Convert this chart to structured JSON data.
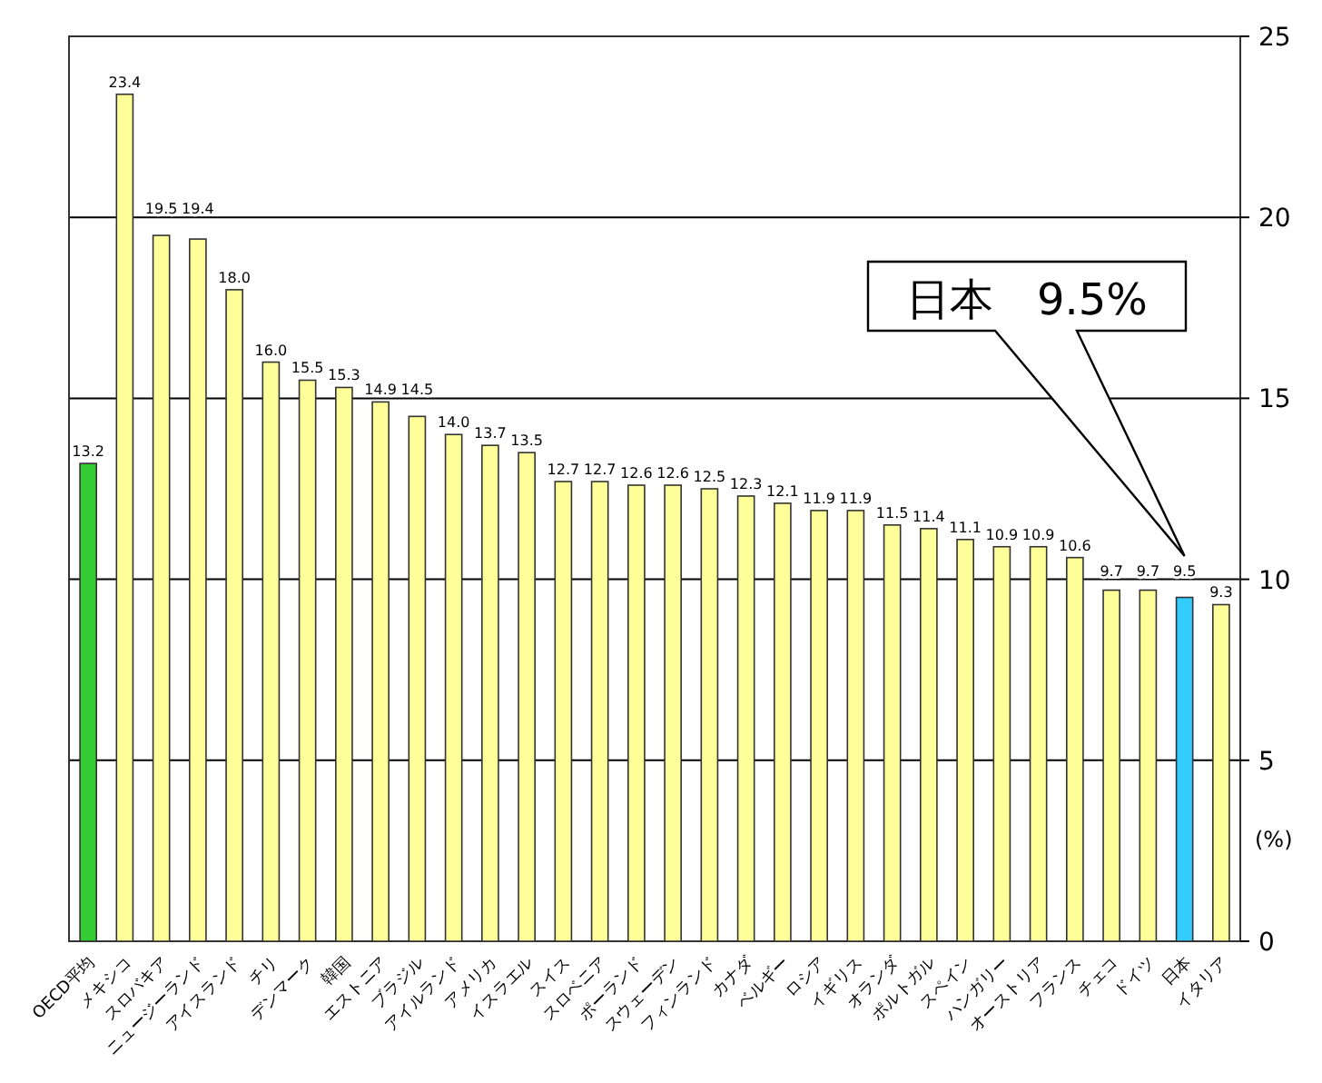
{
  "chart_data": {
    "type": "bar",
    "categories": [
      "OECD平均",
      "メキシコ",
      "スロバキア",
      "ニュージーランド",
      "アイスランド",
      "チリ",
      "デンマーク",
      "韓国",
      "エストニア",
      "ブラジル",
      "アイルランド",
      "アメリカ",
      "イスラエル",
      "スイス",
      "スロベニア",
      "ポーランド",
      "スウェーデン",
      "フィンランド",
      "カナダ",
      "ベルギー",
      "ロシア",
      "イギリス",
      "オランダ",
      "ポルトガル",
      "スペイン",
      "ハンガリー",
      "オーストリア",
      "フランス",
      "チェコ",
      "ドイツ",
      "日本",
      "イタリア"
    ],
    "values": [
      13.2,
      23.4,
      19.5,
      19.4,
      18.0,
      16.0,
      15.5,
      15.3,
      14.9,
      14.5,
      14.0,
      13.7,
      13.5,
      12.7,
      12.7,
      12.6,
      12.6,
      12.5,
      12.3,
      12.1,
      11.9,
      11.9,
      11.5,
      11.4,
      11.1,
      10.9,
      10.9,
      10.6,
      9.7,
      9.7,
      9.5,
      9.3
    ],
    "colors": [
      "#33cc33",
      "#ffff99",
      "#ffff99",
      "#ffff99",
      "#ffff99",
      "#ffff99",
      "#ffff99",
      "#ffff99",
      "#ffff99",
      "#ffff99",
      "#ffff99",
      "#ffff99",
      "#ffff99",
      "#ffff99",
      "#ffff99",
      "#ffff99",
      "#ffff99",
      "#ffff99",
      "#ffff99",
      "#ffff99",
      "#ffff99",
      "#ffff99",
      "#ffff99",
      "#ffff99",
      "#ffff99",
      "#ffff99",
      "#ffff99",
      "#ffff99",
      "#ffff99",
      "#ffff99",
      "#33ccff",
      "#ffff99"
    ],
    "value_labels": [
      "13.2",
      "23.4",
      "19.5",
      "19.4",
      "18.0",
      "16.0",
      "15.5",
      "15.3",
      "14.9",
      "14.5",
      "14.0",
      "13.7",
      "13.5",
      "12.7",
      "12.7",
      "12.6",
      "12.6",
      "12.5",
      "12.3",
      "12.1",
      "11.9",
      "11.9",
      "11.5",
      "11.4",
      "11.1",
      "10.9",
      "10.9",
      "10.6",
      "9.7",
      "9.7",
      "9.5",
      "9.3"
    ],
    "ylim": [
      0,
      25
    ],
    "yticks": [
      0,
      5,
      10,
      15,
      20,
      25
    ],
    "ylabel": "(%)",
    "grid": "y",
    "data_labels": true,
    "annotations": [
      "日本　9.5%"
    ]
  }
}
